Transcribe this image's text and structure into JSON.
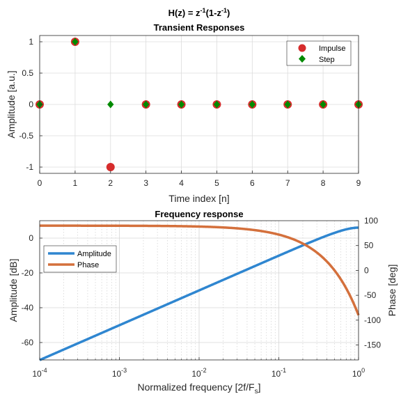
{
  "figure": {
    "title_main": "H(z) = z",
    "title_sup1": "-1",
    "title_mid": "(1-z",
    "title_sup2": "-1",
    "title_end": ")"
  },
  "chart_data": [
    {
      "type": "scatter",
      "title": "Transient Responses",
      "xlabel": "Time index [n]",
      "ylabel": "Amplitude [a.u.]",
      "xlim": [
        0,
        9
      ],
      "ylim": [
        -1.1,
        1.1
      ],
      "x_ticks": [
        "0",
        "1",
        "2",
        "3",
        "4",
        "5",
        "6",
        "7",
        "8",
        "9"
      ],
      "y_ticks": [
        "-1",
        "-0.5",
        "0",
        "0.5",
        "1"
      ],
      "grid": true,
      "legend_position": "top-right",
      "series": [
        {
          "name": "Impulse",
          "marker": "circle",
          "color": "#d62c2c",
          "x": [
            0,
            1,
            2,
            3,
            4,
            5,
            6,
            7,
            8,
            9
          ],
          "y": [
            0,
            1,
            -1,
            0,
            0,
            0,
            0,
            0,
            0,
            0
          ]
        },
        {
          "name": "Step",
          "marker": "diamond",
          "color": "#008a00",
          "x": [
            0,
            1,
            2,
            3,
            4,
            5,
            6,
            7,
            8,
            9
          ],
          "y": [
            0,
            1,
            0,
            0,
            0,
            0,
            0,
            0,
            0,
            0
          ]
        }
      ]
    },
    {
      "type": "line",
      "title": "Frequency response",
      "xlabel_main": "Normalized frequency [2f/F",
      "xlabel_sub": "s",
      "xlabel_end": "]",
      "ylabel": "Amplitude [dB]",
      "y2label": "Phase [deg]",
      "xscale": "log",
      "xlim": [
        0.0001,
        1
      ],
      "ylim": [
        -70,
        10
      ],
      "y2lim": [
        -180,
        100
      ],
      "x_ticks": [
        {
          "base": "10",
          "exp": "-4"
        },
        {
          "base": "10",
          "exp": "-3"
        },
        {
          "base": "10",
          "exp": "-2"
        },
        {
          "base": "10",
          "exp": "-1"
        },
        {
          "base": "10",
          "exp": "0"
        }
      ],
      "y_ticks": [
        "-60",
        "-40",
        "-20",
        "0"
      ],
      "y2_ticks": [
        "-150",
        "-100",
        "-50",
        "0",
        "50",
        "100"
      ],
      "grid": true,
      "legend_position": "middle-left",
      "series": [
        {
          "name": "Amplitude",
          "axis": "left",
          "color": "#2f86d0",
          "formula": "20*log10(2*sin(pi*x/2))"
        },
        {
          "name": "Phase",
          "axis": "right",
          "color": "#d4703c",
          "formula": "90 - 180*x"
        }
      ]
    }
  ]
}
